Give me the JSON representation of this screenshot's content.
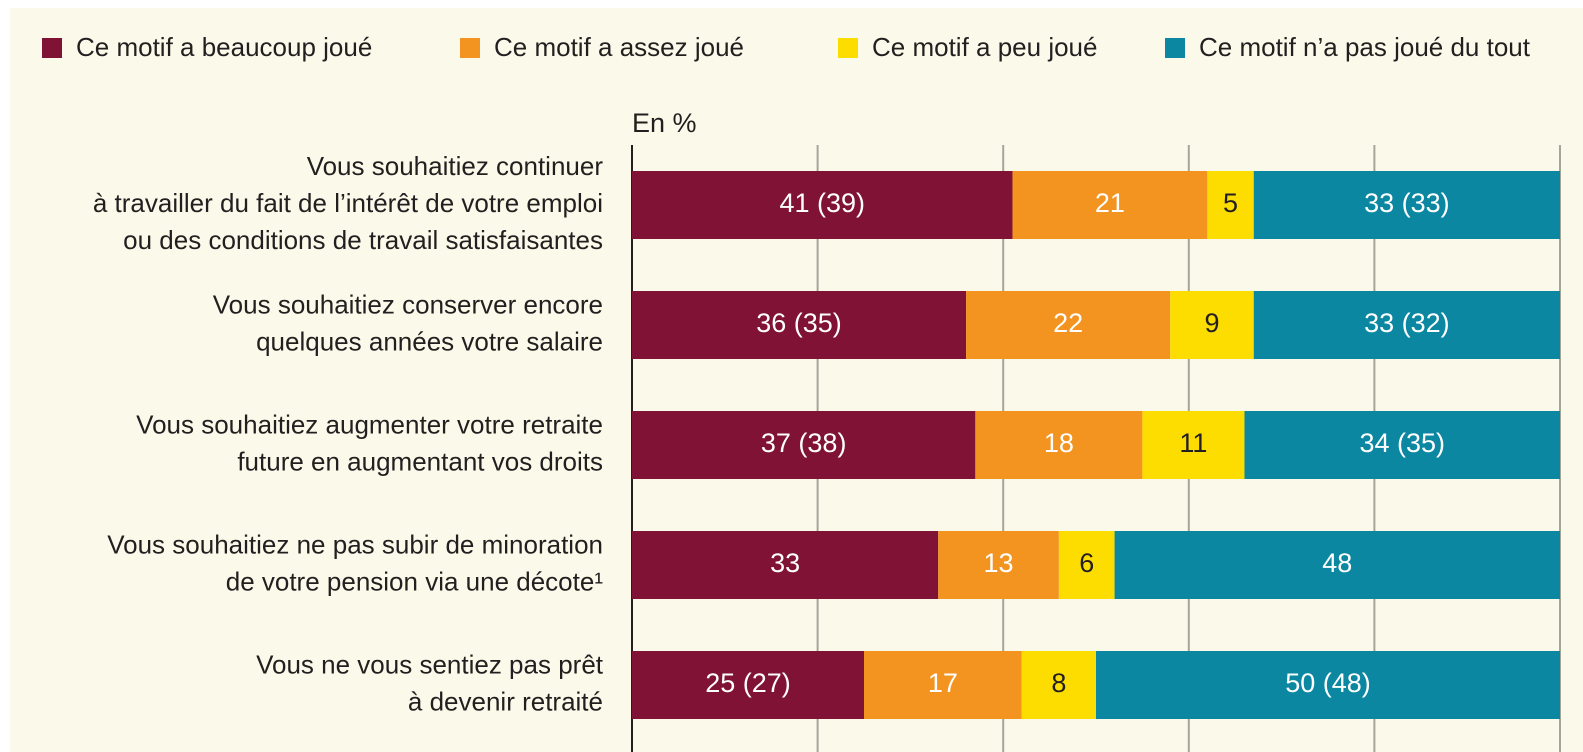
{
  "chart_data": {
    "type": "stacked-barh",
    "axis_label": "En %",
    "categories": [
      [
        "Vous souhaitiez continuer",
        "à travailler du fait de l’intérêt de votre emploi",
        "ou des conditions de travail satisfaisantes"
      ],
      [
        "Vous souhaitiez conserver encore",
        "quelques années votre salaire"
      ],
      [
        "Vous souhaitiez augmenter votre retraite",
        "future en augmentant vos droits"
      ],
      [
        "Vous souhaitiez ne pas subir de minoration",
        "de votre pension via une décote¹"
      ],
      [
        "Vous ne vous sentiez pas prêt",
        "à devenir retraité"
      ]
    ],
    "series": [
      {
        "name": "Ce motif a beaucoup joué",
        "color": "#7f1235",
        "values": [
          41,
          36,
          37,
          33,
          25
        ],
        "value_labels": [
          "41 (39)",
          "36 (35)",
          "37 (38)",
          "33",
          "25 (27)"
        ]
      },
      {
        "name": "Ce motif a assez joué",
        "color": "#f39420",
        "values": [
          21,
          22,
          18,
          13,
          17
        ]
      },
      {
        "name": "Ce motif a peu joué",
        "color": "#fddc00",
        "values": [
          5,
          9,
          11,
          6,
          8
        ]
      },
      {
        "name": "Ce motif n’a pas joué du tout",
        "color": "#0b87a1",
        "values": [
          33,
          33,
          34,
          48,
          50
        ],
        "value_labels": [
          "33 (33)",
          "33 (32)",
          "34 (35)",
          "48",
          "50 (48)"
        ]
      }
    ],
    "xlim": [
      0,
      100
    ],
    "xticks": [
      0,
      20,
      40,
      60,
      80,
      100
    ],
    "grid": true
  }
}
